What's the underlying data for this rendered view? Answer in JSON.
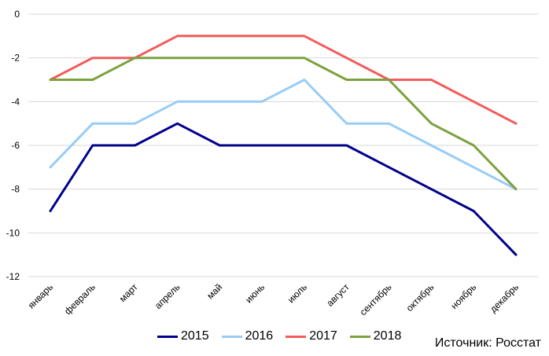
{
  "chart_data": {
    "type": "line",
    "categories": [
      "январь",
      "февраль",
      "март",
      "апрель",
      "май",
      "июнь",
      "июль",
      "август",
      "сентябрь",
      "октябрь",
      "ноябрь",
      "декабрь"
    ],
    "series": [
      {
        "name": "2015",
        "color": "#00008b",
        "values": [
          -9,
          -6,
          -6,
          -5,
          -6,
          -6,
          -6,
          -6,
          -7,
          -8,
          -9,
          -11
        ]
      },
      {
        "name": "2016",
        "color": "#99ccf5",
        "values": [
          -7,
          -5,
          -5,
          -4,
          -4,
          -4,
          -3,
          -5,
          -5,
          -6,
          -7,
          -8
        ]
      },
      {
        "name": "2017",
        "color": "#f25c5c",
        "values": [
          -3,
          -2,
          -2,
          -1,
          -1,
          -1,
          -1,
          -2,
          -3,
          -3,
          -4,
          -5
        ]
      },
      {
        "name": "2018",
        "color": "#7ba23f",
        "values": [
          -3,
          -3,
          -2,
          -2,
          -2,
          -2,
          -2,
          -3,
          -3,
          -5,
          -6,
          -8
        ]
      }
    ],
    "ylim": [
      -12,
      0
    ],
    "yticks": [
      0,
      -2,
      -4,
      -6,
      -8,
      -10,
      -12
    ],
    "grid": true,
    "legend_position": "bottom"
  },
  "source_text": "Источник: Росстат"
}
